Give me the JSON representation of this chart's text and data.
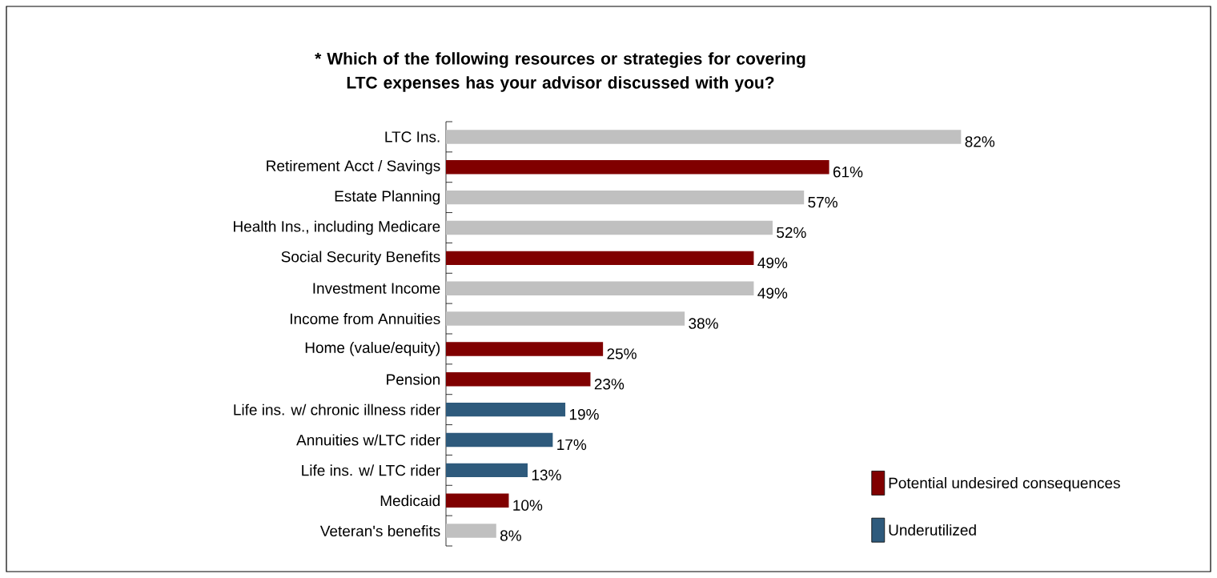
{
  "chart_data": {
    "type": "bar",
    "orientation": "horizontal",
    "title": "* Which of the following resources or strategies for covering LTC expenses has your advisor discussed with you?",
    "categories": [
      "LTC Ins.",
      "Retirement Acct / Savings",
      "Estate Planning",
      "Health Ins., including Medicare",
      "Social Security Benefits",
      "Investment Income",
      "Income from Annuities",
      "Home (value/equity)",
      "Pension",
      "Life ins. w/ chronic illness rider",
      "Annuities w/LTC rider",
      "Life ins. w/ LTC rider",
      "Medicaid",
      "Veteran's benefits"
    ],
    "series": [
      {
        "color": "#c0c0c0",
        "values": [
          82,
          null,
          57,
          52,
          null,
          49,
          38,
          null,
          null,
          null,
          null,
          null,
          null,
          8
        ],
        "value_labels": [
          "82%",
          null,
          "57%",
          "52%",
          null,
          "49%",
          "38%",
          null,
          null,
          null,
          null,
          null,
          null,
          "8%"
        ]
      },
      {
        "name": "Potential undesired consequences",
        "color": "#800000",
        "values": [
          null,
          61,
          null,
          null,
          49,
          null,
          null,
          25,
          23,
          null,
          null,
          null,
          10,
          null
        ],
        "value_labels": [
          null,
          "61%",
          null,
          null,
          "49%",
          null,
          null,
          "25%",
          "23%",
          null,
          null,
          null,
          "10%",
          null
        ]
      },
      {
        "name": "Underutilized",
        "color": "#2e5a7c",
        "values": [
          null,
          null,
          null,
          null,
          null,
          null,
          null,
          null,
          null,
          19,
          17,
          13,
          null,
          null
        ],
        "value_labels": [
          null,
          null,
          null,
          null,
          null,
          null,
          null,
          null,
          null,
          "19%",
          "17%",
          "13%",
          null,
          null
        ]
      }
    ],
    "tick_labels": "y",
    "legend": "bottom right"
  }
}
